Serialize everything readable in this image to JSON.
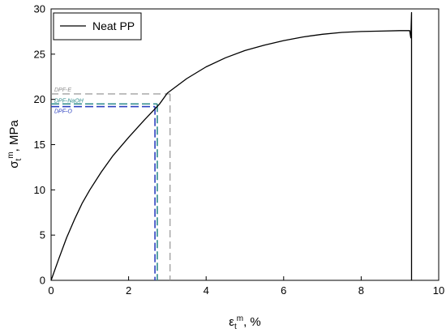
{
  "chart_data": {
    "type": "line",
    "xlabel": {
      "main": "ε",
      "sub": "t",
      "sup": "m",
      "unit": ", %"
    },
    "ylabel": {
      "main": "σ",
      "sub": "t",
      "sup": "m",
      "unit": ", MPa"
    },
    "xlim": [
      0,
      10
    ],
    "ylim": [
      0,
      30
    ],
    "xticks": [
      0,
      2,
      4,
      6,
      8,
      10
    ],
    "yticks": [
      0,
      5,
      10,
      15,
      20,
      25,
      30
    ],
    "grid": false,
    "legend_position": "top-left",
    "series": [
      {
        "name": "Neat PP",
        "color": "#000000",
        "x": [
          0,
          0.2,
          0.4,
          0.6,
          0.8,
          1.0,
          1.3,
          1.6,
          2.0,
          2.4,
          2.8,
          3.0,
          3.5,
          4.0,
          4.5,
          5.0,
          5.5,
          6.0,
          6.5,
          7.0,
          7.5,
          8.0,
          8.5,
          9.0,
          9.25,
          9.28,
          9.3,
          9.3
        ],
        "y": [
          0,
          2.4,
          4.7,
          6.7,
          8.5,
          10.0,
          12.0,
          13.8,
          15.8,
          17.7,
          19.5,
          20.7,
          22.3,
          23.6,
          24.6,
          25.4,
          26.0,
          26.5,
          26.9,
          27.2,
          27.4,
          27.5,
          27.55,
          27.6,
          27.6,
          26.8,
          29.6,
          0
        ]
      }
    ],
    "annotations": [
      {
        "label": "DPF-E",
        "stress": 20.6,
        "strain": 3.07,
        "color": "#8c8c8c"
      },
      {
        "label": "DPF-NaOH",
        "stress": 19.5,
        "strain": 2.74,
        "color": "#2e8b8b"
      },
      {
        "label": "DPF-O",
        "stress": 19.2,
        "strain": 2.68,
        "color": "#2a3fbf"
      }
    ]
  }
}
